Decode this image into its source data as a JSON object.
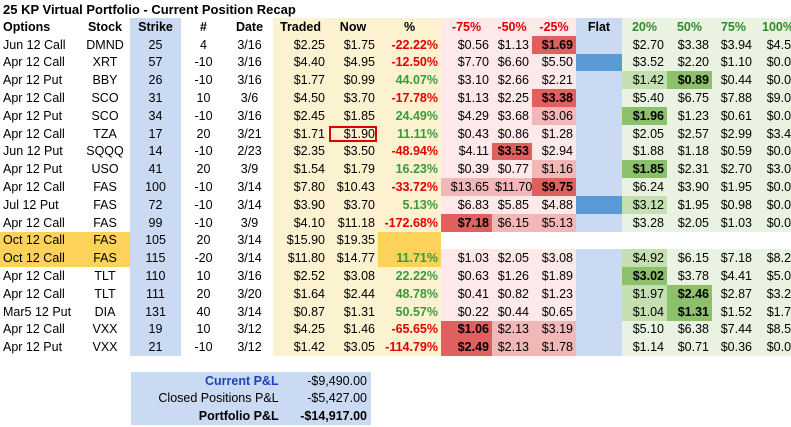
{
  "title": "25 KP Virtual Portfolio - Current Position Recap",
  "headers": [
    "Options",
    "Stock",
    "Strike",
    "#",
    "Date",
    "Traded",
    "Now",
    "%",
    "-75%",
    "-50%",
    "-25%",
    "Flat",
    "20%",
    "50%",
    "75%",
    "100%"
  ],
  "rows": [
    {
      "opt": "Jun 12 Call",
      "stk": "DMND",
      "strike": "25",
      "num": "4",
      "date": "3/16",
      "traded": "$2.25",
      "now": "$1.75",
      "pct": "-22.22%",
      "pctSign": "neg",
      "d75": "$0.56",
      "d50": "$1.13",
      "d25": "$1.69",
      "flat": "",
      "u20": "$2.70",
      "u50": "$3.38",
      "u75": "$3.94",
      "u100": "$4.50",
      "hl": {
        "d25": "red"
      }
    },
    {
      "opt": "Apr 12 Call",
      "stk": "XRT",
      "strike": "57",
      "num": "-10",
      "date": "3/16",
      "traded": "$4.40",
      "now": "$4.95",
      "pct": "-12.50%",
      "pctSign": "neg",
      "d75": "$7.70",
      "d50": "$6.60",
      "d25": "$5.50",
      "flat": "mark",
      "u20": "$3.52",
      "u50": "$2.20",
      "u75": "$1.10",
      "u100": "$0.00",
      "hl": {}
    },
    {
      "opt": "Apr 12 Put",
      "stk": "BBY",
      "strike": "26",
      "num": "-10",
      "date": "3/16",
      "traded": "$1.77",
      "now": "$0.99",
      "pct": "44.07%",
      "pctSign": "pos",
      "d75": "$3.10",
      "d50": "$2.66",
      "d25": "$2.21",
      "flat": "",
      "u20": "$1.42",
      "u50": "$0.89",
      "u75": "$0.44",
      "u100": "$0.00",
      "hl": {
        "u20": "lgreen",
        "u50": "green"
      }
    },
    {
      "opt": "Apr 12 Call",
      "stk": "SCO",
      "strike": "31",
      "num": "10",
      "date": "3/6",
      "traded": "$4.50",
      "now": "$3.70",
      "pct": "-17.78%",
      "pctSign": "neg",
      "d75": "$1.13",
      "d50": "$2.25",
      "d25": "$3.38",
      "flat": "",
      "u20": "$5.40",
      "u50": "$6.75",
      "u75": "$7.88",
      "u100": "$9.00",
      "hl": {
        "d25": "red"
      }
    },
    {
      "opt": "Apr 12 Put",
      "stk": "SCO",
      "strike": "34",
      "num": "-10",
      "date": "3/16",
      "traded": "$2.45",
      "now": "$1.85",
      "pct": "24.49%",
      "pctSign": "pos",
      "d75": "$4.29",
      "d50": "$3.68",
      "d25": "$3.06",
      "flat": "",
      "u20": "$1.96",
      "u50": "$1.23",
      "u75": "$0.61",
      "u100": "$0.00",
      "hl": {
        "d25": "pink",
        "u20": "green"
      }
    },
    {
      "opt": "Apr 12 Call",
      "stk": "TZA",
      "strike": "17",
      "num": "20",
      "date": "3/21",
      "traded": "$1.71",
      "now": "$1.90",
      "pct": "11.11%",
      "pctSign": "pos",
      "d75": "$0.43",
      "d50": "$0.86",
      "d25": "$1.28",
      "flat": "",
      "u20": "$2.05",
      "u50": "$2.57",
      "u75": "$2.99",
      "u100": "$3.42",
      "hl": {},
      "boxedNow": true
    },
    {
      "opt": "Jun 12 Put",
      "stk": "SQQQ",
      "strike": "14",
      "num": "-10",
      "date": "2/23",
      "traded": "$2.35",
      "now": "$3.50",
      "pct": "-48.94%",
      "pctSign": "neg",
      "d75": "$4.11",
      "d50": "$3.53",
      "d25": "$2.94",
      "flat": "",
      "u20": "$1.88",
      "u50": "$1.18",
      "u75": "$0.59",
      "u100": "$0.00",
      "hl": {
        "d50": "red"
      }
    },
    {
      "opt": "Apr 12 Put",
      "stk": "USO",
      "strike": "41",
      "num": "20",
      "date": "3/9",
      "traded": "$1.54",
      "now": "$1.79",
      "pct": "16.23%",
      "pctSign": "pos",
      "d75": "$0.39",
      "d50": "$0.77",
      "d25": "$1.16",
      "flat": "",
      "u20": "$1.85",
      "u50": "$2.31",
      "u75": "$2.70",
      "u100": "$3.08",
      "hl": {
        "d25": "pink",
        "u20": "green"
      }
    },
    {
      "opt": "Apr 12 Call",
      "stk": "FAS",
      "strike": "100",
      "num": "-10",
      "date": "3/14",
      "traded": "$7.80",
      "now": "$10.43",
      "pct": "-33.72%",
      "pctSign": "neg",
      "d75": "$13.65",
      "d50": "$11.70",
      "d25": "$9.75",
      "flat": "",
      "u20": "$6.24",
      "u50": "$3.90",
      "u75": "$1.95",
      "u100": "$0.00",
      "hl": {
        "d75": "pink",
        "d50": "pink",
        "d25": "red"
      }
    },
    {
      "opt": "Jul 12 Put",
      "stk": "FAS",
      "strike": "72",
      "num": "-10",
      "date": "3/14",
      "traded": "$3.90",
      "now": "$3.70",
      "pct": "5.13%",
      "pctSign": "pos",
      "d75": "$6.83",
      "d50": "$5.85",
      "d25": "$4.88",
      "flat": "mark",
      "u20": "$3.12",
      "u50": "$1.95",
      "u75": "$0.98",
      "u100": "$0.00",
      "hl": {
        "u20": "lgreen"
      }
    },
    {
      "opt": "Apr 12 Call",
      "stk": "FAS",
      "strike": "99",
      "num": "-10",
      "date": "3/9",
      "traded": "$4.10",
      "now": "$11.18",
      "pct": "-172.68%",
      "pctSign": "neg",
      "d75": "$7.18",
      "d50": "$6.15",
      "d25": "$5.13",
      "flat": "",
      "u20": "$3.28",
      "u50": "$2.05",
      "u75": "$1.03",
      "u100": "$0.00",
      "hl": {
        "d75": "red",
        "d50": "pink",
        "d25": "pink"
      }
    },
    {
      "opt": "Oct 12 Call",
      "stk": "FAS",
      "strike": "105",
      "num": "20",
      "date": "3/14",
      "traded": "$15.90",
      "now": "$19.35",
      "pct": "",
      "pctSign": "gap",
      "d75": "",
      "d50": "",
      "d25": "",
      "flat": "",
      "u20": "",
      "u50": "",
      "u75": "",
      "u100": "",
      "hl": {},
      "closed": true
    },
    {
      "opt": "Oct 12 Call",
      "stk": "FAS",
      "strike": "115",
      "num": "-20",
      "date": "3/14",
      "traded": "$11.80",
      "now": "$14.77",
      "pct": "11.71%",
      "pctSign": "pos",
      "d75": "$1.03",
      "d50": "$2.05",
      "d25": "$3.08",
      "flat": "",
      "u20": "$4.92",
      "u50": "$6.15",
      "u75": "$7.18",
      "u100": "$8.20",
      "hl": {
        "u20": "lgreen"
      },
      "closed": true
    },
    {
      "opt": "Apr 12 Call",
      "stk": "TLT",
      "strike": "110",
      "num": "10",
      "date": "3/16",
      "traded": "$2.52",
      "now": "$3.08",
      "pct": "22.22%",
      "pctSign": "pos",
      "d75": "$0.63",
      "d50": "$1.26",
      "d25": "$1.89",
      "flat": "",
      "u20": "$3.02",
      "u50": "$3.78",
      "u75": "$4.41",
      "u100": "$5.04",
      "hl": {
        "u20": "green"
      }
    },
    {
      "opt": "Apr 12 Call",
      "stk": "TLT",
      "strike": "111",
      "num": "20",
      "date": "3/20",
      "traded": "$1.64",
      "now": "$2.44",
      "pct": "48.78%",
      "pctSign": "pos",
      "d75": "$0.41",
      "d50": "$0.82",
      "d25": "$1.23",
      "flat": "",
      "u20": "$1.97",
      "u50": "$2.46",
      "u75": "$2.87",
      "u100": "$3.28",
      "hl": {
        "u20": "lgreen",
        "u50": "green"
      }
    },
    {
      "opt": "Mar5 12 Put",
      "stk": "DIA",
      "strike": "131",
      "num": "40",
      "date": "3/14",
      "traded": "$0.87",
      "now": "$1.31",
      "pct": "50.57%",
      "pctSign": "pos",
      "d75": "$0.22",
      "d50": "$0.44",
      "d25": "$0.65",
      "flat": "",
      "u20": "$1.04",
      "u50": "$1.31",
      "u75": "$1.52",
      "u100": "$1.74",
      "hl": {
        "u20": "lgreen",
        "u50": "green"
      }
    },
    {
      "opt": "Apr 12 Call",
      "stk": "VXX",
      "strike": "19",
      "num": "10",
      "date": "3/12",
      "traded": "$4.25",
      "now": "$1.46",
      "pct": "-65.65%",
      "pctSign": "neg",
      "d75": "$1.06",
      "d50": "$2.13",
      "d25": "$3.19",
      "flat": "",
      "u20": "$5.10",
      "u50": "$6.38",
      "u75": "$7.44",
      "u100": "$8.50",
      "hl": {
        "d75": "red",
        "d50": "pink",
        "d25": "pink"
      }
    },
    {
      "opt": "Apr 12 Put",
      "stk": "VXX",
      "strike": "21",
      "num": "-10",
      "date": "3/12",
      "traded": "$1.42",
      "now": "$3.05",
      "pct": "-114.79%",
      "pctSign": "neg",
      "d75": "$2.49",
      "d50": "$2.13",
      "d25": "$1.78",
      "flat": "",
      "u20": "$1.14",
      "u50": "$0.71",
      "u75": "$0.36",
      "u100": "$0.00",
      "hl": {
        "d75": "red",
        "d50": "pink",
        "d25": "pink"
      }
    }
  ],
  "summary": {
    "current_label": "Current P&L",
    "current_value": "-$9,490.00",
    "closed_label": "Closed Positions P&L",
    "closed_value": "-$5,427.00",
    "portfolio_label": "Portfolio P&L",
    "portfolio_value": "-$14,917.00"
  },
  "colors": {
    "negative_text": "#e00000",
    "positive_text": "#3a9a3a",
    "strike_column": "#c9daf2",
    "closed_row": "#fdd25a",
    "loss_highlight": "#e06060",
    "gain_highlight": "#8cc06a",
    "flat_marker": "#5b9bd5"
  }
}
